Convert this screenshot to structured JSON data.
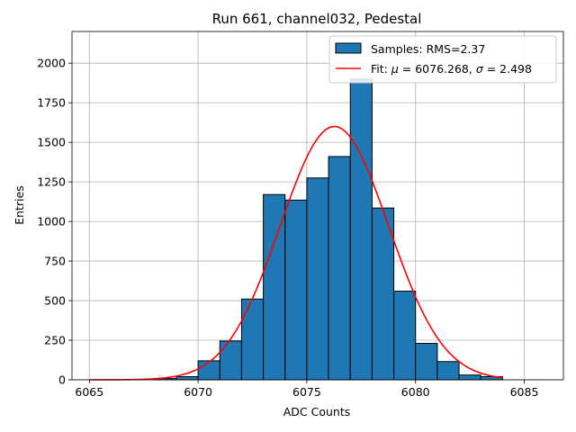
{
  "chart_data": {
    "type": "bar",
    "title": "Run 661, channel032, Pedestal",
    "xlabel": "ADC Counts",
    "ylabel": "Entries",
    "xlim": [
      6064.2,
      6086.8
    ],
    "ylim": [
      0,
      2200
    ],
    "grid": true,
    "legend_position": "top-right",
    "x_ticks": [
      6065,
      6070,
      6075,
      6080,
      6085
    ],
    "y_ticks": [
      0,
      250,
      500,
      750,
      1000,
      1250,
      1500,
      1750,
      2000
    ],
    "histogram": {
      "name": "Samples: RMS=2.37",
      "color": "#1f77b4",
      "bin_width": 1,
      "bin_starts": [
        6068,
        6069,
        6070,
        6071,
        6072,
        6073,
        6074,
        6075,
        6076,
        6077,
        6078,
        6079,
        6080,
        6081,
        6082,
        6083
      ],
      "values": [
        8,
        20,
        120,
        245,
        510,
        1170,
        1135,
        1275,
        1410,
        1900,
        1085,
        560,
        230,
        115,
        30,
        20
      ]
    },
    "fit": {
      "name": "Fit: μ = 6076.268, σ = 2.498",
      "legend_prefix": "Fit: ",
      "mu_symbol": "μ",
      "mu_value": " = 6076.268, ",
      "sigma_symbol": "σ",
      "sigma_value": " = 2.498",
      "color": "#ff0000",
      "mu": 6076.268,
      "sigma": 2.498,
      "amplitude": 1600,
      "x_range": [
        6065,
        6084
      ]
    }
  }
}
